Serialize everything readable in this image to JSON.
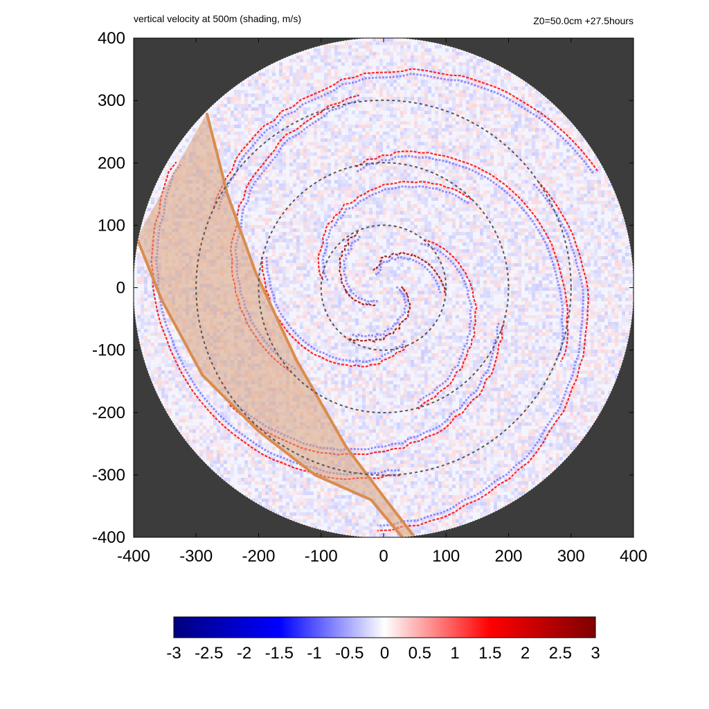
{
  "chart_data": {
    "type": "heatmap",
    "title": "vertical velocity at 500m (shading, m/s)",
    "subtitle": "Z0=50.0cm  +27.5hours",
    "xlim": [
      -400,
      400
    ],
    "ylim": [
      -400,
      400
    ],
    "x_ticks": [
      -400,
      -300,
      -200,
      -100,
      0,
      100,
      200,
      300,
      400
    ],
    "y_ticks": [
      -400,
      -300,
      -200,
      -100,
      0,
      100,
      200,
      300,
      400
    ],
    "domain_radius": 400,
    "reference_circles_radii": [
      100,
      200,
      300
    ],
    "colorbar": {
      "range": [
        -3,
        3
      ],
      "ticks": [
        "-3",
        "-2.5",
        "-2",
        "-1.5",
        "-1",
        "-0.5",
        "0",
        "0.5",
        "1",
        "1.5",
        "2",
        "2.5",
        "3"
      ],
      "colors": [
        "#00007f",
        "#0000ff",
        "#ffffff",
        "#ff0000",
        "#7f0000"
      ]
    },
    "spiral_bands": [
      {
        "r_center": 30,
        "r_end": 100,
        "max_value": 2.8
      },
      {
        "r_center": 100,
        "r_end": 200,
        "max_value": 2.0
      },
      {
        "r_center": 200,
        "r_end": 310,
        "max_value": 2.0
      },
      {
        "r_center": 300,
        "r_end": 390,
        "max_value": 2.0
      }
    ],
    "shaded_band": {
      "color": "#d9a37a",
      "edge_color": "#d98c4e",
      "outer_edge": [
        [
          -283,
          280
        ],
        [
          -250,
          150
        ],
        [
          -205,
          25
        ],
        [
          -140,
          -115
        ],
        [
          -60,
          -255
        ],
        [
          0,
          -335
        ],
        [
          50,
          -400
        ]
      ],
      "inner_edge": [
        [
          -395,
          80
        ],
        [
          -355,
          -20
        ],
        [
          -290,
          -140
        ],
        [
          -200,
          -230
        ],
        [
          -110,
          -300
        ],
        [
          -20,
          -340
        ],
        [
          30,
          -400
        ]
      ]
    },
    "background_color": "#3c3c3c"
  }
}
